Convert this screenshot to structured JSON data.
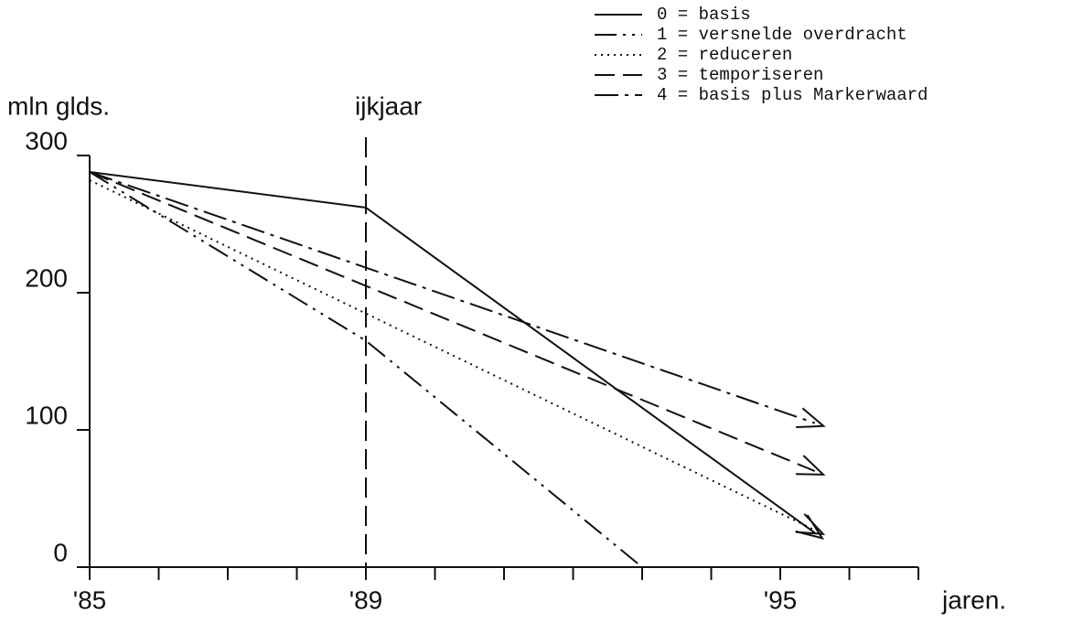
{
  "chart_data": {
    "type": "line",
    "y_axis_label": "mln glds.",
    "x_axis_label": "jaren.",
    "xlim": [
      1985,
      1997
    ],
    "ylim": [
      0,
      300
    ],
    "xticks": [
      {
        "value": 1985,
        "label": "'85"
      },
      {
        "value": 1989,
        "label": "'89"
      },
      {
        "value": 1995,
        "label": "'95"
      }
    ],
    "xminor_ticks": [
      1985,
      1986,
      1987,
      1988,
      1989,
      1990,
      1991,
      1992,
      1993,
      1994,
      1995,
      1996,
      1997
    ],
    "yticks": [
      0,
      100,
      200,
      300
    ],
    "reference_line": {
      "label": "ijkjaar",
      "x": 1989,
      "dash": "dashed"
    },
    "color": "#111111",
    "legend": "top-right",
    "series": [
      {
        "name": "0 = basis",
        "legend_symbol": "———",
        "dash": "solid",
        "arrow": true,
        "x": [
          1985,
          1989,
          1995.5
        ],
        "values": [
          288,
          262,
          25
        ]
      },
      {
        "name": "1 = versnelde overdracht",
        "legend_symbol": "-..-",
        "dash": "dash-dot-dot",
        "arrow": false,
        "x": [
          1985,
          1989,
          1993
        ],
        "values": [
          288,
          165,
          0
        ]
      },
      {
        "name": "2 = reduceren",
        "legend_symbol": "....",
        "dash": "dotted",
        "arrow": true,
        "x": [
          1985,
          1995.5
        ],
        "values": [
          282,
          27
        ]
      },
      {
        "name": "3 = temporiseren",
        "legend_symbol": "----",
        "dash": "dashed",
        "arrow": true,
        "x": [
          1985,
          1995.5
        ],
        "values": [
          288,
          70
        ]
      },
      {
        "name": "4 = basis plus Markerwaard",
        "legend_symbol": "-.-.",
        "dash": "dash-dot",
        "arrow": true,
        "x": [
          1985,
          1995.5
        ],
        "values": [
          288,
          105
        ]
      }
    ]
  }
}
